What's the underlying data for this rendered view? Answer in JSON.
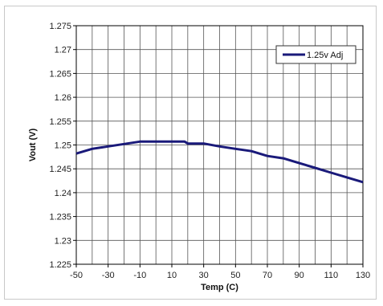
{
  "chart_data": {
    "type": "line",
    "xlabel": "Temp (C)",
    "ylabel": "Vout (V)",
    "xlim": [
      -50,
      130
    ],
    "ylim": [
      1.225,
      1.275
    ],
    "x_ticks": [
      -50,
      -30,
      -10,
      10,
      30,
      50,
      70,
      90,
      110,
      130
    ],
    "x_grid_step": 10,
    "y_ticks": [
      "1.225",
      "1.23",
      "1.235",
      "1.24",
      "1.245",
      "1.25",
      "1.255",
      "1.26",
      "1.265",
      "1.27",
      "1.275"
    ],
    "grid": true,
    "legend_position": "top-right",
    "series": [
      {
        "name": "1.25v Adj",
        "color": "#1a1a7a",
        "x": [
          -50,
          -40,
          -30,
          -20,
          -10,
          0,
          10,
          18,
          20,
          30,
          40,
          50,
          60,
          70,
          80,
          90,
          100,
          110,
          120,
          130
        ],
        "y": [
          1.2482,
          1.2492,
          1.2497,
          1.2502,
          1.2507,
          1.2507,
          1.2507,
          1.2507,
          1.2503,
          1.2503,
          1.2497,
          1.2492,
          1.2487,
          1.2477,
          1.2472,
          1.2462,
          1.2452,
          1.2442,
          1.2432,
          1.2422
        ]
      }
    ]
  }
}
